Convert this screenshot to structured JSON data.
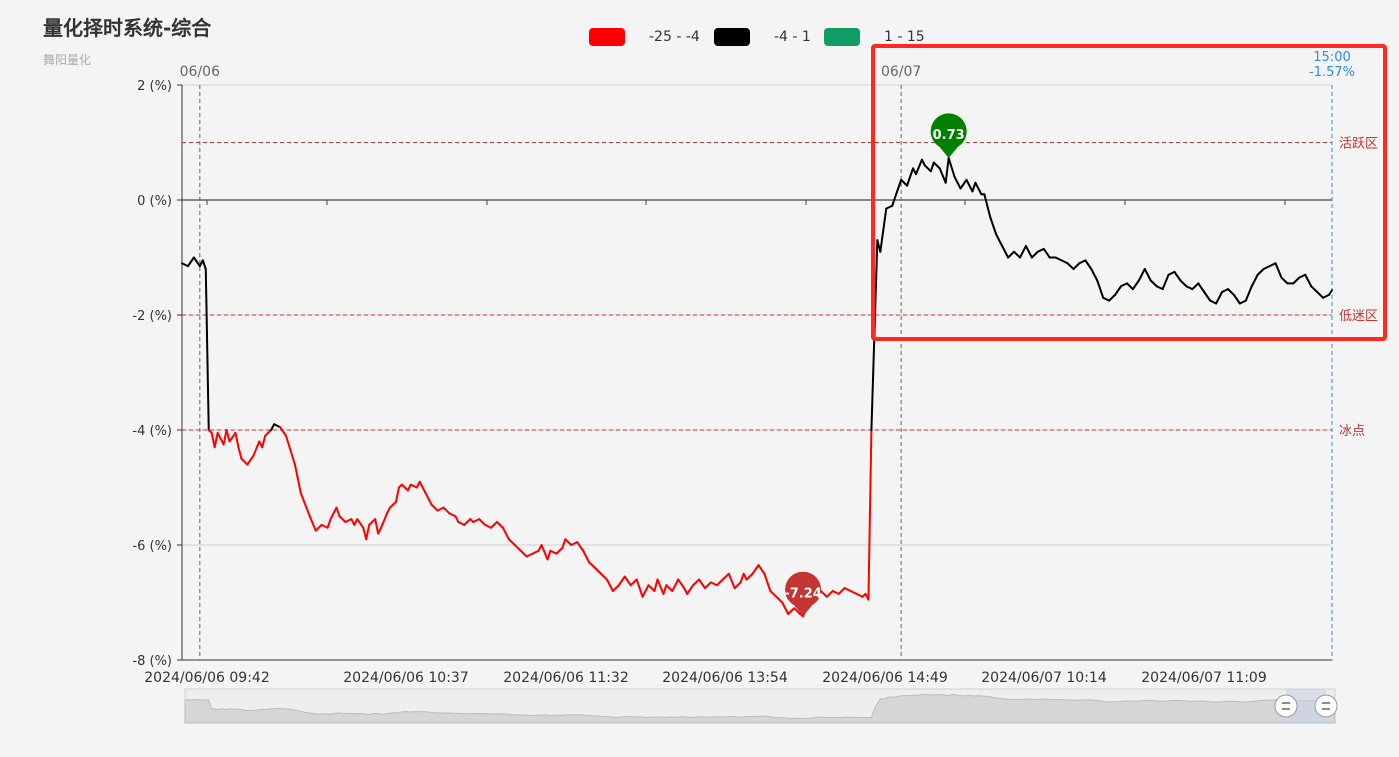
{
  "header": {
    "title": "量化择时系统-综合",
    "subtitle": "舞阳量化"
  },
  "legend": [
    {
      "label": "-25 - -4",
      "color": "#ff0000"
    },
    {
      "label": "-4 - 1",
      "color": "#000000"
    },
    {
      "label": "1 - 15",
      "color": "#0f9d65"
    }
  ],
  "chart_data": {
    "type": "line",
    "title": "量化择时系统-综合",
    "y_unit_format": "{v} (%)",
    "ylim": [
      -8,
      2
    ],
    "y_ticks": [
      2,
      0,
      -2,
      -4,
      -6,
      -8
    ],
    "y_tick_labels": [
      "2 (%)",
      "0 (%)",
      "-2 (%)",
      "-4 (%)",
      "-6 (%)",
      "-8 (%)"
    ],
    "x_tick_labels": [
      "2024/06/06 09:42",
      "2024/06/06 10:37",
      "2024/06/06 11:32",
      "2024/06/06 13:54",
      "2024/06/06 14:49",
      "2024/06/07 10:14",
      "2024/06/07 11:09"
    ],
    "day_markers": [
      {
        "label": "06/06",
        "index": 6
      },
      {
        "label": "06/07",
        "index": 242
      }
    ],
    "current": {
      "time": "15:00",
      "value_label": "-1.57%"
    },
    "mark_lines": [
      {
        "label": "活跃区",
        "value": 1
      },
      {
        "label": "低迷区",
        "value": -2
      },
      {
        "label": "冰点",
        "value": -4
      }
    ],
    "visual_map": [
      {
        "min": -25,
        "max": -4,
        "color": "#ff0000"
      },
      {
        "min": -4,
        "max": 1,
        "color": "#000000"
      },
      {
        "min": 1,
        "max": 15,
        "color": "#0f9d65"
      }
    ],
    "max_point": {
      "label": "0.73",
      "value": 0.73,
      "index": 258,
      "color": "#008000"
    },
    "min_point": {
      "label": "-7.24",
      "value": -7.24,
      "index": 209,
      "color": "#c23531"
    },
    "total_points": 388,
    "series": [
      {
        "keypoints": [
          [
            0,
            -1.1
          ],
          [
            2,
            -1.15
          ],
          [
            4,
            -1.0
          ],
          [
            6,
            -1.15
          ],
          [
            7,
            -1.05
          ],
          [
            8,
            -1.2
          ],
          [
            9,
            -4.0
          ],
          [
            10,
            -4.05
          ],
          [
            11,
            -4.3
          ],
          [
            12,
            -4.05
          ],
          [
            13,
            -4.15
          ],
          [
            14,
            -4.25
          ],
          [
            15,
            -4.0
          ],
          [
            16,
            -4.2
          ],
          [
            18,
            -4.05
          ],
          [
            19,
            -4.3
          ],
          [
            20,
            -4.5
          ],
          [
            22,
            -4.6
          ],
          [
            24,
            -4.45
          ],
          [
            26,
            -4.2
          ],
          [
            27,
            -4.3
          ],
          [
            28,
            -4.1
          ],
          [
            30,
            -4.0
          ],
          [
            31,
            -3.9
          ],
          [
            33,
            -3.95
          ],
          [
            35,
            -4.1
          ],
          [
            38,
            -4.6
          ],
          [
            40,
            -5.1
          ],
          [
            43,
            -5.5
          ],
          [
            45,
            -5.75
          ],
          [
            47,
            -5.65
          ],
          [
            49,
            -5.7
          ],
          [
            50,
            -5.55
          ],
          [
            52,
            -5.35
          ],
          [
            53,
            -5.5
          ],
          [
            55,
            -5.6
          ],
          [
            57,
            -5.55
          ],
          [
            58,
            -5.65
          ],
          [
            59,
            -5.55
          ],
          [
            61,
            -5.7
          ],
          [
            62,
            -5.9
          ],
          [
            63,
            -5.65
          ],
          [
            65,
            -5.55
          ],
          [
            66,
            -5.8
          ],
          [
            67,
            -5.7
          ],
          [
            69,
            -5.45
          ],
          [
            70,
            -5.35
          ],
          [
            71,
            -5.3
          ],
          [
            72,
            -5.25
          ],
          [
            73,
            -5.0
          ],
          [
            74,
            -4.95
          ],
          [
            76,
            -5.05
          ],
          [
            77,
            -4.95
          ],
          [
            79,
            -5.0
          ],
          [
            80,
            -4.9
          ],
          [
            82,
            -5.1
          ],
          [
            84,
            -5.3
          ],
          [
            86,
            -5.4
          ],
          [
            88,
            -5.35
          ],
          [
            90,
            -5.45
          ],
          [
            92,
            -5.5
          ],
          [
            93,
            -5.6
          ],
          [
            95,
            -5.65
          ],
          [
            97,
            -5.55
          ],
          [
            98,
            -5.6
          ],
          [
            100,
            -5.55
          ],
          [
            102,
            -5.65
          ],
          [
            104,
            -5.7
          ],
          [
            106,
            -5.6
          ],
          [
            108,
            -5.7
          ],
          [
            110,
            -5.9
          ],
          [
            112,
            -6.0
          ],
          [
            114,
            -6.1
          ],
          [
            116,
            -6.2
          ],
          [
            118,
            -6.15
          ],
          [
            120,
            -6.1
          ],
          [
            121,
            -6.0
          ],
          [
            123,
            -6.25
          ],
          [
            124,
            -6.1
          ],
          [
            126,
            -6.15
          ],
          [
            128,
            -6.05
          ],
          [
            129,
            -5.9
          ],
          [
            131,
            -6.0
          ],
          [
            133,
            -5.95
          ],
          [
            135,
            -6.1
          ],
          [
            137,
            -6.3
          ],
          [
            139,
            -6.4
          ],
          [
            141,
            -6.5
          ],
          [
            143,
            -6.6
          ],
          [
            145,
            -6.8
          ],
          [
            147,
            -6.7
          ],
          [
            149,
            -6.55
          ],
          [
            151,
            -6.7
          ],
          [
            153,
            -6.6
          ],
          [
            154,
            -6.75
          ],
          [
            155,
            -6.9
          ],
          [
            157,
            -6.7
          ],
          [
            159,
            -6.8
          ],
          [
            160,
            -6.6
          ],
          [
            162,
            -6.85
          ],
          [
            163,
            -6.7
          ],
          [
            165,
            -6.8
          ],
          [
            167,
            -6.6
          ],
          [
            169,
            -6.75
          ],
          [
            170,
            -6.85
          ],
          [
            172,
            -6.7
          ],
          [
            174,
            -6.6
          ],
          [
            176,
            -6.75
          ],
          [
            178,
            -6.65
          ],
          [
            180,
            -6.7
          ],
          [
            182,
            -6.6
          ],
          [
            184,
            -6.5
          ],
          [
            186,
            -6.75
          ],
          [
            188,
            -6.65
          ],
          [
            189,
            -6.5
          ],
          [
            190,
            -6.6
          ],
          [
            192,
            -6.5
          ],
          [
            194,
            -6.35
          ],
          [
            196,
            -6.5
          ],
          [
            198,
            -6.8
          ],
          [
            200,
            -6.9
          ],
          [
            202,
            -7.0
          ],
          [
            204,
            -7.2
          ],
          [
            206,
            -7.1
          ],
          [
            208,
            -7.2
          ],
          [
            209,
            -7.24
          ],
          [
            211,
            -7.0
          ],
          [
            213,
            -6.75
          ],
          [
            215,
            -6.8
          ],
          [
            217,
            -6.9
          ],
          [
            219,
            -6.8
          ],
          [
            221,
            -6.85
          ],
          [
            223,
            -6.75
          ],
          [
            225,
            -6.8
          ],
          [
            227,
            -6.85
          ],
          [
            229,
            -6.9
          ],
          [
            230,
            -6.85
          ],
          [
            231,
            -6.95
          ],
          [
            232,
            -4.0
          ],
          [
            234,
            -0.7
          ],
          [
            235,
            -0.9
          ],
          [
            237,
            -0.15
          ],
          [
            239,
            -0.1
          ],
          [
            241,
            0.2
          ],
          [
            242,
            0.35
          ],
          [
            244,
            0.25
          ],
          [
            246,
            0.55
          ],
          [
            247,
            0.45
          ],
          [
            249,
            0.7
          ],
          [
            250,
            0.6
          ],
          [
            252,
            0.5
          ],
          [
            253,
            0.65
          ],
          [
            255,
            0.55
          ],
          [
            257,
            0.3
          ],
          [
            258,
            0.73
          ],
          [
            260,
            0.4
          ],
          [
            262,
            0.2
          ],
          [
            264,
            0.35
          ],
          [
            266,
            0.15
          ],
          [
            267,
            0.3
          ],
          [
            269,
            0.1
          ],
          [
            270,
            0.1
          ],
          [
            272,
            -0.3
          ],
          [
            274,
            -0.6
          ],
          [
            276,
            -0.8
          ],
          [
            278,
            -1.0
          ],
          [
            280,
            -0.9
          ],
          [
            282,
            -1.0
          ],
          [
            284,
            -0.8
          ],
          [
            286,
            -1.0
          ],
          [
            288,
            -0.9
          ],
          [
            290,
            -0.85
          ],
          [
            292,
            -1.0
          ],
          [
            294,
            -1.0
          ],
          [
            296,
            -1.05
          ],
          [
            298,
            -1.1
          ],
          [
            300,
            -1.2
          ],
          [
            302,
            -1.1
          ],
          [
            304,
            -1.05
          ],
          [
            306,
            -1.2
          ],
          [
            308,
            -1.4
          ],
          [
            310,
            -1.7
          ],
          [
            312,
            -1.75
          ],
          [
            314,
            -1.65
          ],
          [
            316,
            -1.5
          ],
          [
            318,
            -1.45
          ],
          [
            320,
            -1.55
          ],
          [
            322,
            -1.4
          ],
          [
            324,
            -1.2
          ],
          [
            326,
            -1.4
          ],
          [
            328,
            -1.5
          ],
          [
            330,
            -1.55
          ],
          [
            332,
            -1.3
          ],
          [
            334,
            -1.25
          ],
          [
            336,
            -1.4
          ],
          [
            338,
            -1.5
          ],
          [
            340,
            -1.55
          ],
          [
            342,
            -1.45
          ],
          [
            344,
            -1.6
          ],
          [
            346,
            -1.75
          ],
          [
            348,
            -1.8
          ],
          [
            350,
            -1.6
          ],
          [
            352,
            -1.55
          ],
          [
            354,
            -1.65
          ],
          [
            356,
            -1.8
          ],
          [
            358,
            -1.75
          ],
          [
            360,
            -1.5
          ],
          [
            362,
            -1.3
          ],
          [
            364,
            -1.2
          ],
          [
            366,
            -1.15
          ],
          [
            368,
            -1.1
          ],
          [
            370,
            -1.35
          ],
          [
            372,
            -1.45
          ],
          [
            374,
            -1.45
          ],
          [
            376,
            -1.35
          ],
          [
            378,
            -1.3
          ],
          [
            380,
            -1.5
          ],
          [
            382,
            -1.6
          ],
          [
            384,
            -1.7
          ],
          [
            386,
            -1.65
          ],
          [
            387,
            -1.57
          ]
        ]
      }
    ],
    "data_zoom": {
      "start": 0,
      "end": 100
    }
  }
}
